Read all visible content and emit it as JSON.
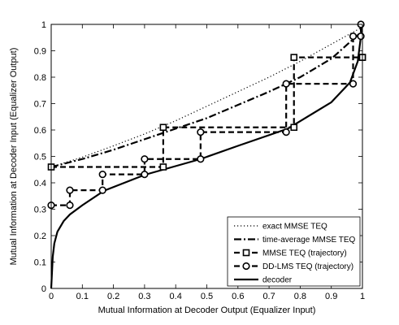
{
  "chart_data": {
    "type": "line",
    "title": "",
    "xlabel": "Mutual Information at Decoder Output (Equalizer Input)",
    "ylabel": "Mutual Information at Decoder Input (Equalizer Output)",
    "xlim": [
      0,
      1
    ],
    "ylim": [
      0,
      1
    ],
    "xticks": [
      "0",
      "0.1",
      "0.2",
      "0.3",
      "0.4",
      "0.5",
      "0.6",
      "0.7",
      "0.8",
      "0.9",
      "1"
    ],
    "yticks": [
      "0",
      "0.1",
      "0.2",
      "0.3",
      "0.4",
      "0.5",
      "0.6",
      "0.7",
      "0.8",
      "0.9",
      "1"
    ],
    "grid": false,
    "legend_position": "bottom-right",
    "series": [
      {
        "name": "exact MMSE TEQ",
        "style": "dotted",
        "x": [
          0,
          0.1,
          0.2,
          0.3,
          0.4,
          0.5,
          0.6,
          0.7,
          0.8,
          0.9,
          1.0
        ],
        "y": [
          0.46,
          0.497,
          0.54,
          0.585,
          0.635,
          0.69,
          0.745,
          0.8,
          0.86,
          0.925,
          0.99
        ]
      },
      {
        "name": "time-average MMSE TEQ",
        "style": "dashdot",
        "x": [
          0,
          0.1,
          0.2,
          0.3,
          0.4,
          0.5,
          0.6,
          0.7,
          0.8,
          0.9,
          1.0
        ],
        "y": [
          0.46,
          0.49,
          0.525,
          0.565,
          0.605,
          0.645,
          0.695,
          0.745,
          0.8,
          0.87,
          0.975
        ]
      },
      {
        "name": "MMSE TEQ (trajectory)",
        "style": "dashed-square",
        "x": [
          0,
          0.36,
          0.36,
          0.78,
          0.78,
          1.0,
          1.0
        ],
        "y": [
          0.46,
          0.46,
          0.61,
          0.61,
          0.875,
          0.875,
          0.875
        ]
      },
      {
        "name": "DD-LMS TEQ (trajectory)",
        "style": "dashed-circle",
        "x": [
          0,
          0.06,
          0.06,
          0.165,
          0.165,
          0.3,
          0.3,
          0.48,
          0.48,
          0.755,
          0.755,
          0.97,
          0.97,
          0.995,
          0.995
        ],
        "y": [
          0.315,
          0.315,
          0.372,
          0.372,
          0.432,
          0.432,
          0.49,
          0.49,
          0.592,
          0.592,
          0.775,
          0.775,
          0.955,
          0.955,
          1.0
        ]
      },
      {
        "name": "decoder",
        "style": "solid",
        "x": [
          0,
          0.005,
          0.01,
          0.02,
          0.04,
          0.06,
          0.1,
          0.17,
          0.3,
          0.48,
          0.6,
          0.76,
          0.9,
          0.96,
          0.985,
          1.0
        ],
        "y": [
          0.0,
          0.12,
          0.17,
          0.215,
          0.255,
          0.28,
          0.315,
          0.37,
          0.43,
          0.49,
          0.54,
          0.605,
          0.705,
          0.78,
          0.86,
          1.0
        ]
      }
    ]
  }
}
